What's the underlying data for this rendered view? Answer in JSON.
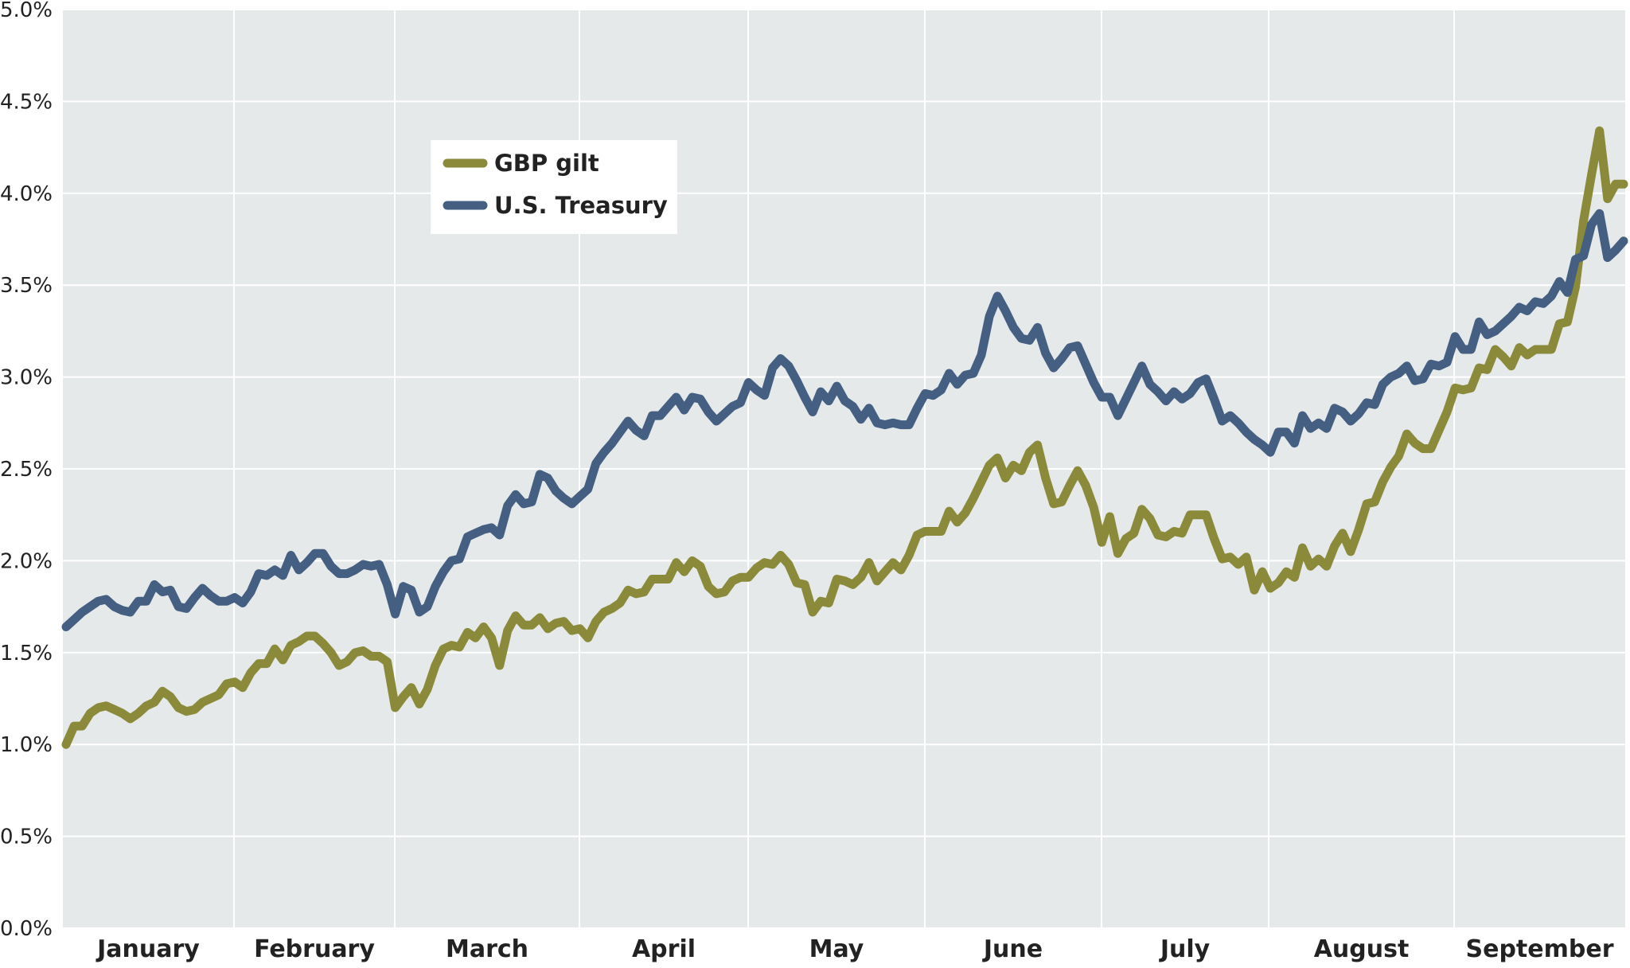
{
  "chart_data": {
    "type": "line",
    "title": "",
    "xlabel": "",
    "ylabel": "",
    "ylim": [
      0,
      5
    ],
    "y_ticks": [
      "0.0%",
      "0.5%",
      "1.0%",
      "1.5%",
      "2.0%",
      "2.5%",
      "3.0%",
      "3.5%",
      "4.0%",
      "4.5%",
      "5.0%"
    ],
    "months": [
      "January",
      "February",
      "March",
      "April",
      "May",
      "June",
      "July",
      "August",
      "September"
    ],
    "grid": true,
    "legend_position": "upper-left",
    "series": [
      {
        "name": "GBP gilt",
        "color": "#8a8a3a",
        "values": [
          1.0,
          1.1,
          1.1,
          1.17,
          1.2,
          1.21,
          1.19,
          1.17,
          1.14,
          1.17,
          1.21,
          1.23,
          1.29,
          1.26,
          1.2,
          1.18,
          1.19,
          1.23,
          1.25,
          1.27,
          1.33,
          1.34,
          1.31,
          1.39,
          1.44,
          1.44,
          1.52,
          1.46,
          1.54,
          1.56,
          1.59,
          1.59,
          1.55,
          1.5,
          1.43,
          1.45,
          1.5,
          1.51,
          1.48,
          1.48,
          1.45,
          1.2,
          1.26,
          1.31,
          1.22,
          1.3,
          1.43,
          1.52,
          1.54,
          1.53,
          1.61,
          1.58,
          1.64,
          1.58,
          1.43,
          1.62,
          1.7,
          1.65,
          1.65,
          1.69,
          1.63,
          1.66,
          1.67,
          1.62,
          1.63,
          1.58,
          1.67,
          1.72,
          1.74,
          1.77,
          1.84,
          1.82,
          1.83,
          1.9,
          1.9,
          1.9,
          1.99,
          1.94,
          2.0,
          1.97,
          1.86,
          1.82,
          1.83,
          1.89,
          1.91,
          1.91,
          1.96,
          1.99,
          1.98,
          2.03,
          1.98,
          1.88,
          1.87,
          1.72,
          1.78,
          1.77,
          1.9,
          1.89,
          1.87,
          1.91,
          1.99,
          1.89,
          1.94,
          1.99,
          1.95,
          2.03,
          2.14,
          2.16,
          2.16,
          2.16,
          2.27,
          2.21,
          2.26,
          2.34,
          2.43,
          2.52,
          2.56,
          2.45,
          2.52,
          2.49,
          2.59,
          2.63,
          2.45,
          2.31,
          2.32,
          2.41,
          2.49,
          2.41,
          2.29,
          2.1,
          2.24,
          2.04,
          2.12,
          2.15,
          2.28,
          2.23,
          2.14,
          2.13,
          2.16,
          2.15,
          2.25,
          2.25,
          2.25,
          2.12,
          2.01,
          2.02,
          1.98,
          2.02,
          1.84,
          1.94,
          1.85,
          1.88,
          1.94,
          1.91,
          2.07,
          1.97,
          2.01,
          1.97,
          2.08,
          2.15,
          2.05,
          2.17,
          2.31,
          2.32,
          2.43,
          2.51,
          2.57,
          2.69,
          2.64,
          2.61,
          2.61,
          2.71,
          2.81,
          2.94,
          2.93,
          2.94,
          3.05,
          3.04,
          3.15,
          3.11,
          3.06,
          3.16,
          3.12,
          3.15,
          3.15,
          3.15,
          3.29,
          3.3,
          3.49,
          3.85,
          4.1,
          4.34,
          3.97,
          4.05,
          4.05
        ]
      },
      {
        "name": "U.S. Treasury",
        "color": "#445f82",
        "values": [
          1.64,
          1.68,
          1.72,
          1.75,
          1.78,
          1.79,
          1.75,
          1.73,
          1.72,
          1.78,
          1.78,
          1.87,
          1.83,
          1.84,
          1.75,
          1.74,
          1.8,
          1.85,
          1.81,
          1.78,
          1.78,
          1.8,
          1.77,
          1.83,
          1.93,
          1.92,
          1.95,
          1.92,
          2.03,
          1.95,
          1.99,
          2.04,
          2.04,
          1.97,
          1.93,
          1.93,
          1.95,
          1.98,
          1.97,
          1.98,
          1.87,
          1.71,
          1.86,
          1.84,
          1.72,
          1.75,
          1.86,
          1.94,
          2.0,
          2.01,
          2.13,
          2.15,
          2.17,
          2.18,
          2.14,
          2.3,
          2.36,
          2.31,
          2.32,
          2.47,
          2.45,
          2.38,
          2.34,
          2.31,
          2.35,
          2.39,
          2.53,
          2.59,
          2.64,
          2.7,
          2.76,
          2.71,
          2.68,
          2.79,
          2.79,
          2.84,
          2.89,
          2.82,
          2.89,
          2.88,
          2.81,
          2.76,
          2.8,
          2.84,
          2.86,
          2.97,
          2.93,
          2.9,
          3.05,
          3.1,
          3.06,
          2.98,
          2.89,
          2.81,
          2.92,
          2.87,
          2.95,
          2.87,
          2.84,
          2.77,
          2.83,
          2.75,
          2.74,
          2.75,
          2.74,
          2.74,
          2.83,
          2.91,
          2.9,
          2.93,
          3.02,
          2.96,
          3.01,
          3.02,
          3.12,
          3.33,
          3.44,
          3.36,
          3.27,
          3.21,
          3.2,
          3.27,
          3.13,
          3.05,
          3.1,
          3.16,
          3.17,
          3.07,
          2.97,
          2.89,
          2.89,
          2.79,
          2.88,
          2.97,
          3.06,
          2.96,
          2.92,
          2.87,
          2.92,
          2.88,
          2.91,
          2.97,
          2.99,
          2.88,
          2.76,
          2.79,
          2.75,
          2.7,
          2.66,
          2.63,
          2.59,
          2.7,
          2.7,
          2.64,
          2.79,
          2.72,
          2.75,
          2.72,
          2.83,
          2.81,
          2.76,
          2.8,
          2.86,
          2.85,
          2.96,
          3.0,
          3.02,
          3.06,
          2.98,
          2.99,
          3.07,
          3.06,
          3.08,
          3.22,
          3.15,
          3.15,
          3.3,
          3.23,
          3.25,
          3.29,
          3.33,
          3.38,
          3.36,
          3.41,
          3.4,
          3.44,
          3.52,
          3.46,
          3.64,
          3.66,
          3.83,
          3.89,
          3.65,
          3.69,
          3.74
        ]
      }
    ]
  }
}
